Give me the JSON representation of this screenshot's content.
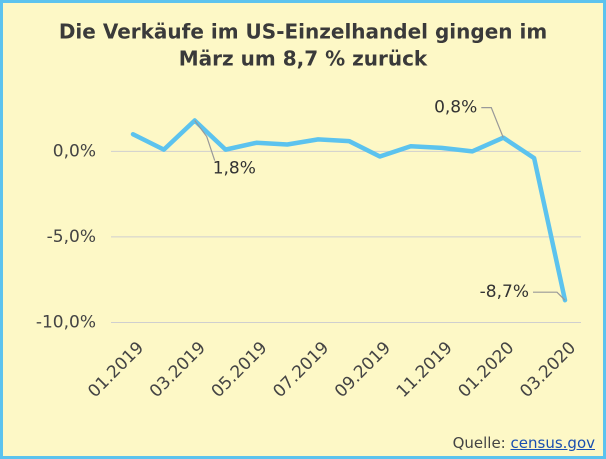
{
  "chart_data": {
    "type": "line",
    "title": [
      "Die Verkäufe im US-Einzelhandel gingen im",
      "März um 8,7 % zurück"
    ],
    "categories": [
      "01.2019",
      null,
      "03.2019",
      null,
      "05.2019",
      null,
      "07.2019",
      null,
      "09.2019",
      null,
      "11.2019",
      null,
      "01.2020",
      null,
      "03.2020"
    ],
    "series": [
      {
        "color": "#5cc3ee",
        "values": [
          1.0,
          0.1,
          1.8,
          0.1,
          0.5,
          0.4,
          0.7,
          0.6,
          -0.3,
          0.3,
          0.2,
          0.0,
          0.8,
          -0.4,
          -8.7
        ],
        "value_labels": [
          null,
          null,
          "1,8%",
          null,
          null,
          null,
          null,
          null,
          null,
          null,
          null,
          null,
          "0,8%",
          null,
          "-8,7%"
        ]
      }
    ],
    "ylim": [
      -10.5,
      3
    ],
    "yticks": [
      {
        "value": -10,
        "label": "-10,0%"
      },
      {
        "value": -5,
        "label": "-5,0%"
      },
      {
        "value": 0,
        "label": "0,0%"
      }
    ],
    "grid": true,
    "source": {
      "prefix": "Quelle:",
      "link": "census.gov"
    }
  }
}
